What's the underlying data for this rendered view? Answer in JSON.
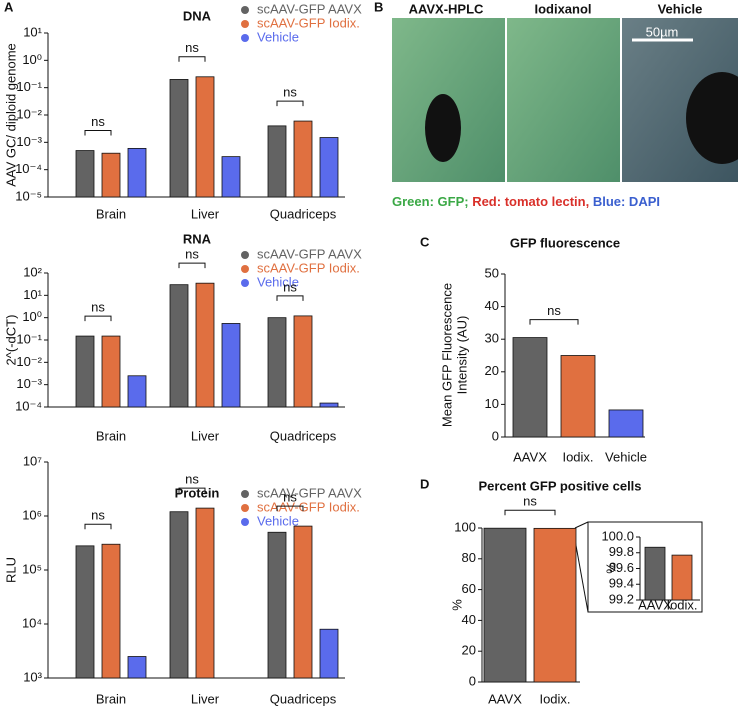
{
  "panel_labels": [
    "A",
    "B",
    "C",
    "D"
  ],
  "micrograph": {
    "labels": [
      "AAVX-HPLC",
      "Iodixanol",
      "Vehicle"
    ],
    "scale_bar": "50µm",
    "caption": [
      {
        "text": "Green: GFP;",
        "color": "#3aa845"
      },
      {
        "text": " Red: tomato lectin,",
        "color": "#d9302a"
      },
      {
        "text": " Blue: DAPI",
        "color": "#3a5fcf"
      }
    ]
  },
  "chart_data": [
    {
      "type": "bar",
      "title": "DNA",
      "ylabel": "AAV GC/ diploid genome",
      "log_scale": true,
      "categories": [
        "Brain",
        "Liver",
        "Quadriceps"
      ],
      "series": [
        {
          "name": "scAAV-GFP AAVX",
          "color": "#636363",
          "values": [
            0.0005,
            0.2,
            0.004
          ]
        },
        {
          "name": "scAAV-GFP Iodix.",
          "color": "#e07040",
          "values": [
            0.0004,
            0.25,
            0.006
          ]
        },
        {
          "name": "Vehicle",
          "color": "#5a6bec",
          "values": [
            0.0006,
            0.0003,
            0.0015
          ]
        }
      ],
      "annotations": [
        "ns",
        "ns",
        "ns"
      ],
      "ylim": [
        1e-05,
        10
      ],
      "yticks": [
        {
          "value": 10,
          "label": "10¹"
        },
        {
          "value": 1,
          "label": "10⁰"
        },
        {
          "value": 0.1,
          "label": "10⁻¹"
        },
        {
          "value": 0.01,
          "label": "10⁻²"
        },
        {
          "value": 0.001,
          "label": "10⁻³"
        },
        {
          "value": 0.0001,
          "label": "10⁻⁴"
        },
        {
          "value": 1e-05,
          "label": "10⁻⁵"
        }
      ]
    },
    {
      "type": "bar",
      "title": "RNA",
      "ylabel": "2^(-dCT)",
      "log_scale": true,
      "categories": [
        "Brain",
        "Liver",
        "Quadriceps"
      ],
      "series": [
        {
          "name": "scAAV-GFP AAVX",
          "color": "#636363",
          "values": [
            0.15,
            30,
            1.0
          ]
        },
        {
          "name": "scAAV-GFP Iodix.",
          "color": "#e07040",
          "values": [
            0.15,
            35,
            1.2
          ]
        },
        {
          "name": "Vehicle",
          "color": "#5a6bec",
          "values": [
            0.0025,
            0.55,
            0.00015
          ]
        }
      ],
      "annotations": [
        "ns",
        "ns",
        "ns"
      ],
      "ylim": [
        0.0001,
        100
      ],
      "yticks": [
        {
          "value": 100,
          "label": "10²"
        },
        {
          "value": 10,
          "label": "10¹"
        },
        {
          "value": 1,
          "label": "10⁰"
        },
        {
          "value": 0.1,
          "label": "10⁻¹"
        },
        {
          "value": 0.01,
          "label": "10⁻²"
        },
        {
          "value": 0.001,
          "label": "10⁻³"
        },
        {
          "value": 0.0001,
          "label": "10⁻⁴"
        }
      ]
    },
    {
      "type": "bar",
      "title": "Protein",
      "ylabel": "RLU",
      "log_scale": true,
      "categories": [
        "Brain",
        "Liver",
        "Quadriceps"
      ],
      "series": [
        {
          "name": "scAAV-GFP AAVX",
          "color": "#636363",
          "values": [
            280000,
            1200000,
            500000
          ]
        },
        {
          "name": "scAAV-GFP Iodix.",
          "color": "#e07040",
          "values": [
            300000,
            1400000,
            650000
          ]
        },
        {
          "name": "Vehicle",
          "color": "#5a6bec",
          "values": [
            2500,
            null,
            8000
          ]
        }
      ],
      "annotations": [
        "ns",
        "ns",
        "ns"
      ],
      "ylim": [
        1000,
        10000000
      ],
      "yticks": [
        {
          "value": 10000000,
          "label": "10⁷"
        },
        {
          "value": 1000000,
          "label": "10⁶"
        },
        {
          "value": 100000,
          "label": "10⁵"
        },
        {
          "value": 10000,
          "label": "10⁴"
        },
        {
          "value": 1000,
          "label": "10³"
        }
      ]
    },
    {
      "type": "bar",
      "title": "GFP fluorescence",
      "ylabel": [
        "Mean GFP Fluorescence",
        "Intensity  (AU)"
      ],
      "log_scale": false,
      "categories": [
        "AAVX",
        "Iodix.",
        "Vehicle"
      ],
      "values": [
        30.5,
        25,
        8.3
      ],
      "colors": [
        "#636363",
        "#e07040",
        "#5a6bec"
      ],
      "annotations": [
        "ns"
      ],
      "ylim": [
        0,
        50
      ],
      "yticks": [
        0,
        10,
        20,
        30,
        40,
        50
      ]
    },
    {
      "type": "bar",
      "title": "Percent GFP positive cells",
      "ylabel": "%",
      "log_scale": false,
      "categories": [
        "AAVX",
        "Iodix."
      ],
      "values": [
        99.87,
        99.77
      ],
      "colors": [
        "#636363",
        "#e07040"
      ],
      "annotations": [
        "ns"
      ],
      "ylim": [
        0,
        100
      ],
      "yticks": [
        0,
        20,
        40,
        60,
        80,
        100
      ]
    },
    {
      "type": "bar",
      "ylabel": "%",
      "log_scale": false,
      "categories": [
        "AAVX",
        "Iodix."
      ],
      "values": [
        99.87,
        99.77
      ],
      "colors": [
        "#636363",
        "#e07040"
      ],
      "ylim": [
        99.2,
        100
      ],
      "yticks": [
        {
          "value": 100,
          "label": "100.0"
        },
        99.8,
        99.6,
        99.4,
        99.2
      ]
    }
  ]
}
